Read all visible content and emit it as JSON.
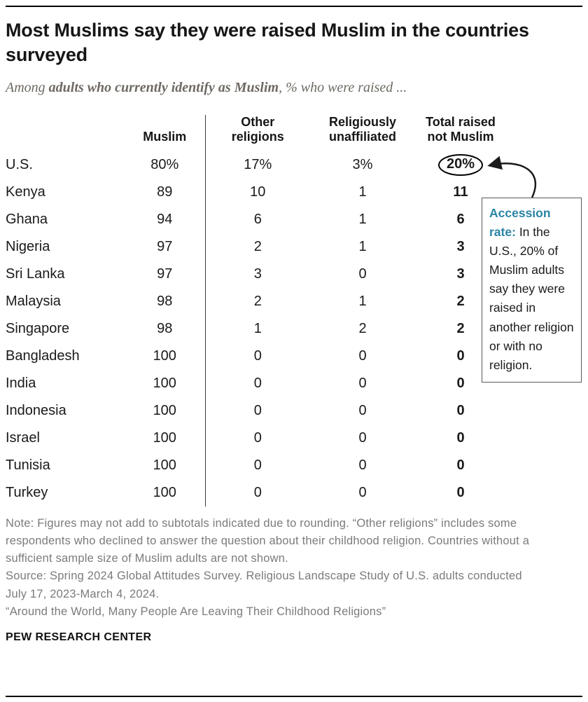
{
  "colors": {
    "accent_teal": "#2a84a5",
    "rule_black": "#000000",
    "note_gray": "#7b7b7b"
  },
  "header": {
    "title": "Most Muslims say they were raised Muslim in the countries surveyed",
    "subtitle_prefix": "Among ",
    "subtitle_bold": "adults who currently identify as Muslim",
    "subtitle_suffix": ", % who were raised ..."
  },
  "chart_data": {
    "type": "table",
    "title": "Most Muslims say they were raised Muslim in the countries surveyed",
    "subtitle": "Among adults who currently identify as Muslim, % who were raised ...",
    "columns": [
      "Muslim",
      "Other religions",
      "Religiously unaffiliated",
      "Total raised not Muslim"
    ],
    "rows": [
      {
        "country": "U.S.",
        "values": [
          "80%",
          "17%",
          "3%",
          "20%"
        ],
        "circled_total": true
      },
      {
        "country": "Kenya",
        "values": [
          "89",
          "10",
          "1",
          "11"
        ]
      },
      {
        "country": "Ghana",
        "values": [
          "94",
          "6",
          "1",
          "6"
        ]
      },
      {
        "country": "Nigeria",
        "values": [
          "97",
          "2",
          "1",
          "3"
        ]
      },
      {
        "country": "Sri Lanka",
        "values": [
          "97",
          "3",
          "0",
          "3"
        ]
      },
      {
        "country": "Malaysia",
        "values": [
          "98",
          "2",
          "1",
          "2"
        ]
      },
      {
        "country": "Singapore",
        "values": [
          "98",
          "1",
          "2",
          "2"
        ]
      },
      {
        "country": "Bangladesh",
        "values": [
          "100",
          "0",
          "0",
          "0"
        ]
      },
      {
        "country": "India",
        "values": [
          "100",
          "0",
          "0",
          "0"
        ]
      },
      {
        "country": "Indonesia",
        "values": [
          "100",
          "0",
          "0",
          "0"
        ]
      },
      {
        "country": "Israel",
        "values": [
          "100",
          "0",
          "0",
          "0"
        ]
      },
      {
        "country": "Tunisia",
        "values": [
          "100",
          "0",
          "0",
          "0"
        ]
      },
      {
        "country": "Turkey",
        "values": [
          "100",
          "0",
          "0",
          "0"
        ]
      }
    ],
    "annotation": {
      "label": "Accession rate:",
      "text": "In the U.S., 20% of Muslim adults say they were raised in another religion or with no religion."
    }
  },
  "notes": {
    "note": "Note: Figures may not add to subtotals indicated due to rounding. “Other religions” includes some respondents who declined to answer the question about their childhood religion. Countries without a sufficient sample size of Muslim adults are not shown.",
    "source": "Source: Spring 2024 Global Attitudes Survey. Religious Landscape Study of U.S. adults conducted July 17, 2023-March 4, 2024.",
    "citation": "“Around the World, Many People Are Leaving Their Childhood Religions”"
  },
  "footer": {
    "brand": "PEW RESEARCH CENTER"
  }
}
